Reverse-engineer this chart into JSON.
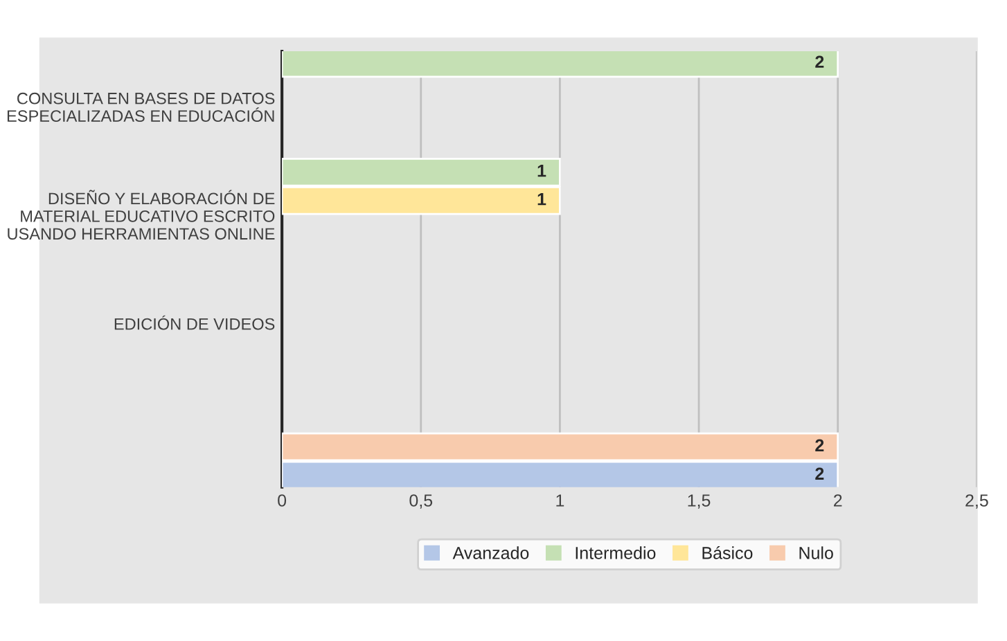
{
  "chart_data": {
    "type": "bar",
    "orientation": "horizontal",
    "categories": [
      "CONSULTA EN BASES DE DATOS ESPECIALIZADAS EN EDUCACIÓN",
      "DISEÑO Y ELABORACIÓN DE MATERIAL EDUCATIVO ESCRITO USANDO HERRAMIENTAS ONLINE",
      "EDICIÓN DE VIDEOS",
      null
    ],
    "series": [
      {
        "name": "Avanzado",
        "color": "#b4c7e7",
        "values": [
          null,
          null,
          null,
          2
        ]
      },
      {
        "name": "Intermedio",
        "color": "#c5e0b4",
        "values": [
          2,
          1,
          null,
          null
        ]
      },
      {
        "name": "Básico",
        "color": "#ffe699",
        "values": [
          null,
          1,
          null,
          null
        ]
      },
      {
        "name": "Nulo",
        "color": "#f8cbad",
        "values": [
          null,
          null,
          null,
          2
        ]
      }
    ],
    "xlim": [
      0,
      2.5
    ],
    "xticks": [
      0,
      {
        "value": 0.5,
        "label": "0,5"
      },
      1,
      {
        "value": 1.5,
        "label": "1,5"
      },
      2,
      {
        "value": 2.5,
        "label": "2,5"
      }
    ],
    "grid": "x",
    "legend": "bottom",
    "data_labels": true
  }
}
